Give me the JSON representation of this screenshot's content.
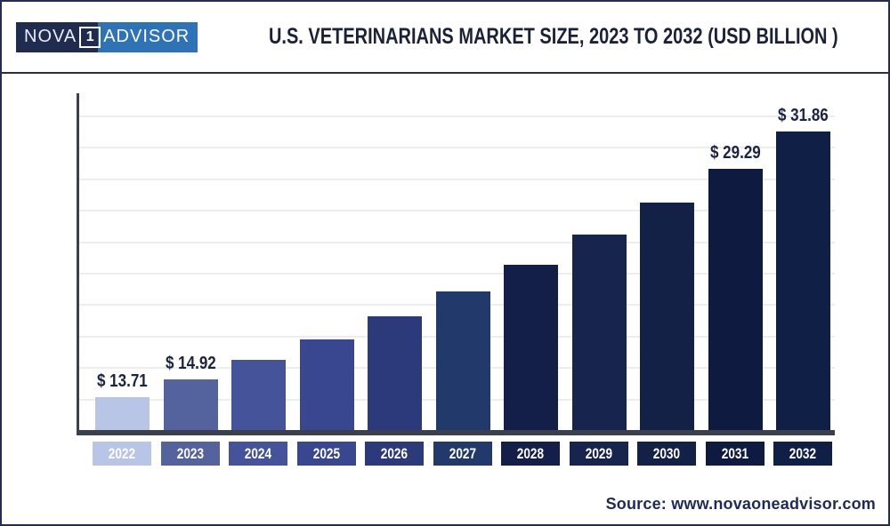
{
  "header": {
    "logo": {
      "nova": "NOVA",
      "one": "1",
      "advisor": "ADVISOR"
    },
    "title": "U.S. VETERINARIANS MARKET SIZE, 2023 TO 2032 (USD BILLION )"
  },
  "footer": {
    "source": "Source: www.novaoneadvisor.com"
  },
  "colors": {
    "brand_navy": "#1f2c4f",
    "brand_blue": "#2e73b8",
    "title_text": "#1a2238",
    "axis": "#3a404e",
    "gridline": "#ededf0",
    "value_label_text": "#1a2440",
    "year_label_text": "#ffffff",
    "source_text": "#1e2a5e"
  },
  "chart_data": {
    "type": "bar",
    "title": "U.S. VETERINARIANS MARKET SIZE, 2023 TO 2032 (USD BILLION )",
    "xlabel": "",
    "ylabel": "",
    "unit": "USD Billion",
    "legend": false,
    "grid": true,
    "categories": [
      "2022",
      "2023",
      "2024",
      "2025",
      "2026",
      "2027",
      "2028",
      "2029",
      "2030",
      "2031",
      "2032"
    ],
    "values": [
      13.71,
      14.92,
      16.23,
      17.67,
      19.23,
      20.93,
      22.78,
      24.79,
      26.98,
      29.29,
      31.86
    ],
    "data_labels": [
      "$ 13.71",
      "$ 14.92",
      "",
      "",
      "",
      "",
      "",
      "",
      "",
      "$ 29.29",
      "$ 31.86"
    ],
    "bar_colors": [
      "#b9c5e6",
      "#54629d",
      "#45539a",
      "#394790",
      "#2c3a7c",
      "#21396b",
      "#131f48",
      "#17254e",
      "#142147",
      "#0e1a3f",
      "#101f45"
    ]
  }
}
